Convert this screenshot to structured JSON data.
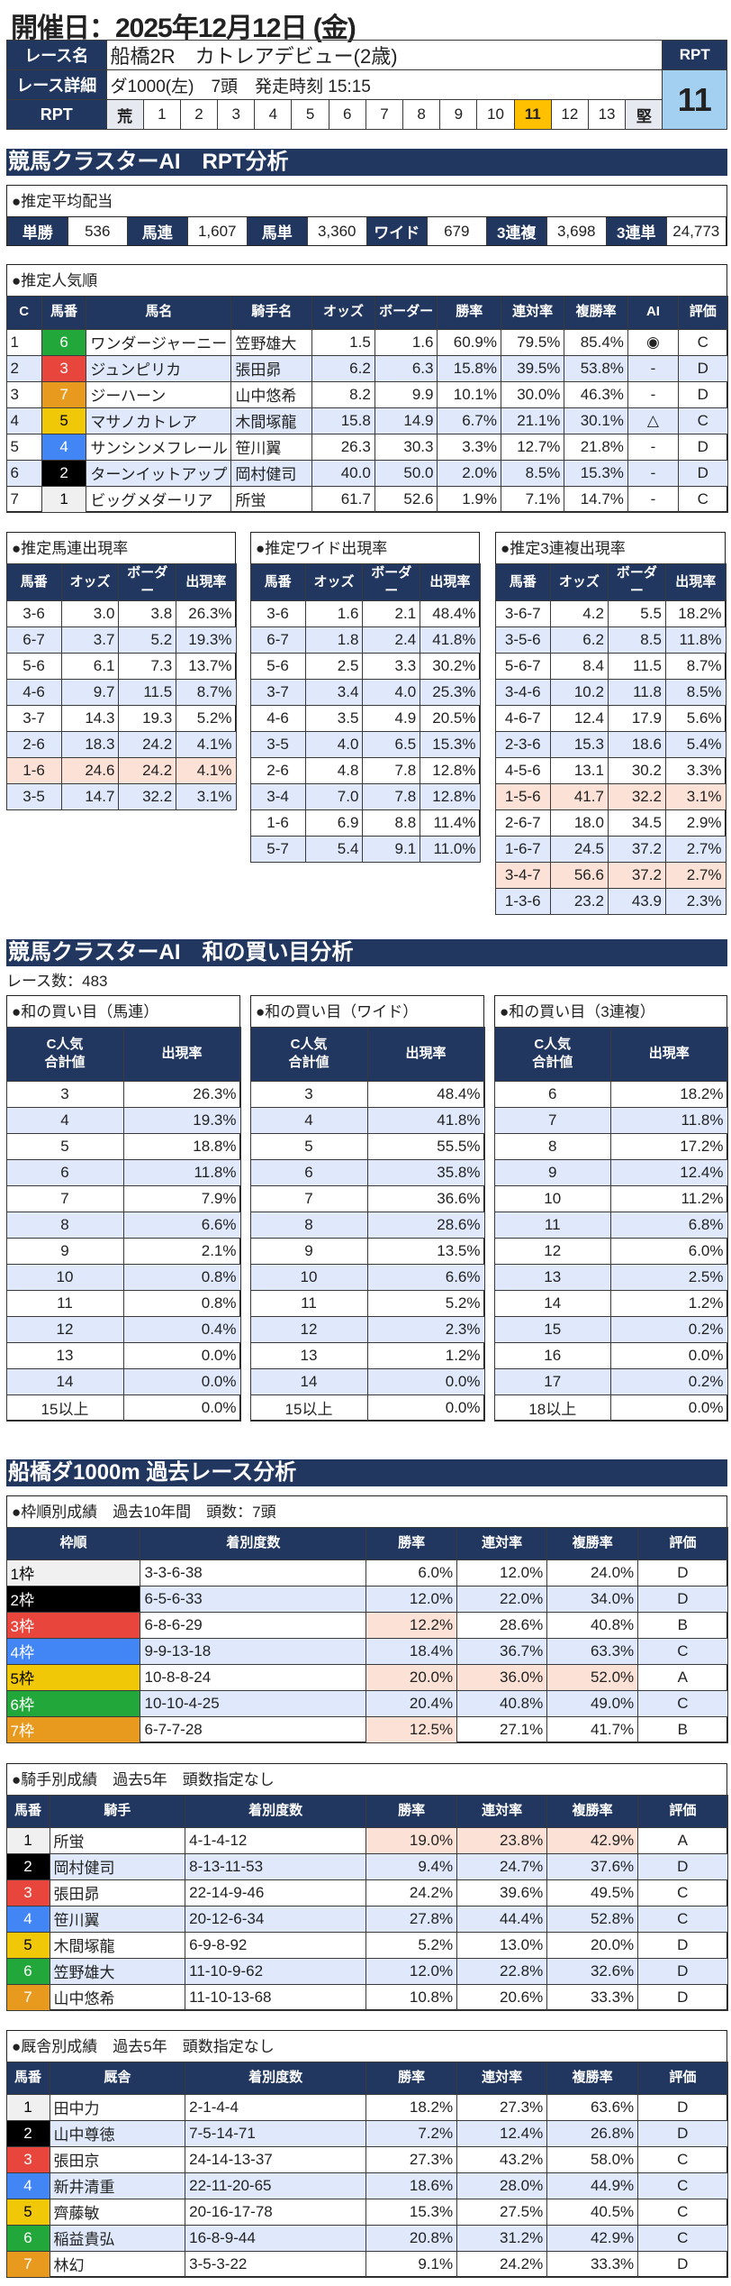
{
  "header": {
    "date_title": "開催日：2025年12月12日 (金)",
    "race_name_label": "レース名",
    "race_name": "船橋2R　カトレアデビュー(2歳)",
    "race_detail_label": "レース詳細",
    "race_detail": "ダ1000(左)　7頭　発走時刻 15:15",
    "rpt_label": "RPT",
    "rpt_scale": [
      "荒",
      "1",
      "2",
      "3",
      "4",
      "5",
      "6",
      "7",
      "8",
      "9",
      "10",
      "11",
      "12",
      "13",
      "堅"
    ],
    "rpt_selected": "11",
    "rpt_box_label": "RPT",
    "rpt_value": "11"
  },
  "colors": {
    "navy": "#21375f",
    "row_alt": "#dfe9fb",
    "highlight": "#fbe1d6",
    "rpt_selected": "#ffc000",
    "rpt_box": "#a3cff0",
    "frame": {
      "1": "#f0f0f0",
      "2": "#000000",
      "3": "#e8453c",
      "4": "#4285f4",
      "5": "#f0c808",
      "6": "#22a83a",
      "7": "#e89a1e"
    }
  },
  "sec1_title": "競馬クラスターAI　RPT分析",
  "payout": {
    "title": "●推定平均配当",
    "items": [
      {
        "label": "単勝",
        "value": "536"
      },
      {
        "label": "馬連",
        "value": "1,607"
      },
      {
        "label": "馬単",
        "value": "3,360"
      },
      {
        "label": "ワイド",
        "value": "679"
      },
      {
        "label": "3連複",
        "value": "3,698"
      },
      {
        "label": "3連単",
        "value": "24,773"
      }
    ]
  },
  "popularity": {
    "title": "●推定人気順",
    "headers": [
      "C",
      "馬番",
      "馬名",
      "騎手名",
      "オッズ",
      "ボーダー",
      "勝率",
      "連対率",
      "複勝率",
      "AI",
      "評価"
    ],
    "rows": [
      [
        "1",
        "6",
        "ワンダージャーニー",
        "笠野雄大",
        "1.5",
        "1.6",
        "60.9%",
        "79.5%",
        "85.4%",
        "◉",
        "C"
      ],
      [
        "2",
        "3",
        "ジュンピリカ",
        "張田昴",
        "6.2",
        "6.3",
        "15.8%",
        "39.5%",
        "53.8%",
        "-",
        "D"
      ],
      [
        "3",
        "7",
        "ジーハーン",
        "山中悠希",
        "8.2",
        "9.9",
        "10.1%",
        "30.0%",
        "46.3%",
        "-",
        "D"
      ],
      [
        "4",
        "5",
        "マサノカトレア",
        "木間塚龍",
        "15.8",
        "14.9",
        "6.7%",
        "21.1%",
        "30.1%",
        "△",
        "C"
      ],
      [
        "5",
        "4",
        "サンシンメフレール",
        "笹川翼",
        "26.3",
        "30.3",
        "3.3%",
        "12.7%",
        "21.8%",
        "-",
        "D"
      ],
      [
        "6",
        "2",
        "ターンイットアップ",
        "岡村健司",
        "40.0",
        "50.0",
        "2.0%",
        "8.5%",
        "15.3%",
        "-",
        "D"
      ],
      [
        "7",
        "1",
        "ビッグメダーリア",
        "所蛍",
        "61.7",
        "52.6",
        "1.9%",
        "7.1%",
        "14.7%",
        "-",
        "C"
      ]
    ]
  },
  "umaren": {
    "title": "●推定馬連出現率",
    "headers": [
      "馬番",
      "オッズ",
      "ボーダー",
      "出現率"
    ],
    "highlight_rows": [
      6
    ],
    "rows": [
      [
        "3-6",
        "3.0",
        "3.8",
        "26.3%"
      ],
      [
        "6-7",
        "3.7",
        "5.2",
        "19.3%"
      ],
      [
        "5-6",
        "6.1",
        "7.3",
        "13.7%"
      ],
      [
        "4-6",
        "9.7",
        "11.5",
        "8.7%"
      ],
      [
        "3-7",
        "14.3",
        "19.3",
        "5.2%"
      ],
      [
        "2-6",
        "18.3",
        "24.2",
        "4.1%"
      ],
      [
        "1-6",
        "24.6",
        "24.2",
        "4.1%"
      ],
      [
        "3-5",
        "14.7",
        "32.2",
        "3.1%"
      ]
    ]
  },
  "wide": {
    "title": "●推定ワイド出現率",
    "headers": [
      "馬番",
      "オッズ",
      "ボーダー",
      "出現率"
    ],
    "highlight_rows": [],
    "rows": [
      [
        "3-6",
        "1.6",
        "2.1",
        "48.4%"
      ],
      [
        "6-7",
        "1.8",
        "2.4",
        "41.8%"
      ],
      [
        "5-6",
        "2.5",
        "3.3",
        "30.2%"
      ],
      [
        "3-7",
        "3.4",
        "4.0",
        "25.3%"
      ],
      [
        "4-6",
        "3.5",
        "4.9",
        "20.5%"
      ],
      [
        "3-5",
        "4.0",
        "6.5",
        "15.3%"
      ],
      [
        "2-6",
        "4.8",
        "7.8",
        "12.8%"
      ],
      [
        "3-4",
        "7.0",
        "7.8",
        "12.8%"
      ],
      [
        "1-6",
        "6.9",
        "8.8",
        "11.4%"
      ],
      [
        "5-7",
        "5.4",
        "9.1",
        "11.0%"
      ]
    ]
  },
  "sanrenpuku": {
    "title": "●推定3連複出現率",
    "headers": [
      "馬番",
      "オッズ",
      "ボーダー",
      "出現率"
    ],
    "highlight_rows": [
      7,
      10
    ],
    "rows": [
      [
        "3-6-7",
        "4.2",
        "5.5",
        "18.2%"
      ],
      [
        "3-5-6",
        "6.2",
        "8.5",
        "11.8%"
      ],
      [
        "5-6-7",
        "8.4",
        "11.5",
        "8.7%"
      ],
      [
        "3-4-6",
        "10.2",
        "11.8",
        "8.5%"
      ],
      [
        "4-6-7",
        "12.4",
        "17.9",
        "5.6%"
      ],
      [
        "2-3-6",
        "15.3",
        "18.6",
        "5.4%"
      ],
      [
        "4-5-6",
        "13.1",
        "30.2",
        "3.3%"
      ],
      [
        "1-5-6",
        "41.7",
        "32.2",
        "3.1%"
      ],
      [
        "2-6-7",
        "18.0",
        "34.5",
        "2.9%"
      ],
      [
        "1-6-7",
        "24.5",
        "37.2",
        "2.7%"
      ],
      [
        "3-4-7",
        "56.6",
        "37.2",
        "2.7%"
      ],
      [
        "1-3-6",
        "23.2",
        "43.9",
        "2.3%"
      ]
    ]
  },
  "sec2_title": "競馬クラスターAI　和の買い目分析",
  "race_count": "レース数：483",
  "sum_umaren": {
    "title": "●和の買い目（馬連）",
    "headers": [
      "C人気\n合計値",
      "出現率"
    ],
    "rows": [
      [
        "3",
        "26.3%"
      ],
      [
        "4",
        "19.3%"
      ],
      [
        "5",
        "18.8%"
      ],
      [
        "6",
        "11.8%"
      ],
      [
        "7",
        "7.9%"
      ],
      [
        "8",
        "6.6%"
      ],
      [
        "9",
        "2.1%"
      ],
      [
        "10",
        "0.8%"
      ],
      [
        "11",
        "0.8%"
      ],
      [
        "12",
        "0.4%"
      ],
      [
        "13",
        "0.0%"
      ],
      [
        "14",
        "0.0%"
      ],
      [
        "15以上",
        "0.0%"
      ]
    ]
  },
  "sum_wide": {
    "title": "●和の買い目（ワイド）",
    "headers": [
      "C人気\n合計値",
      "出現率"
    ],
    "rows": [
      [
        "3",
        "48.4%"
      ],
      [
        "4",
        "41.8%"
      ],
      [
        "5",
        "55.5%"
      ],
      [
        "6",
        "35.8%"
      ],
      [
        "7",
        "36.6%"
      ],
      [
        "8",
        "28.6%"
      ],
      [
        "9",
        "13.5%"
      ],
      [
        "10",
        "6.6%"
      ],
      [
        "11",
        "5.2%"
      ],
      [
        "12",
        "2.3%"
      ],
      [
        "13",
        "1.2%"
      ],
      [
        "14",
        "0.0%"
      ],
      [
        "15以上",
        "0.0%"
      ]
    ]
  },
  "sum_sanrenpuku": {
    "title": "●和の買い目（3連複）",
    "headers": [
      "C人気\n合計値",
      "出現率"
    ],
    "rows": [
      [
        "6",
        "18.2%"
      ],
      [
        "7",
        "11.8%"
      ],
      [
        "8",
        "17.2%"
      ],
      [
        "9",
        "12.4%"
      ],
      [
        "10",
        "11.2%"
      ],
      [
        "11",
        "6.8%"
      ],
      [
        "12",
        "6.0%"
      ],
      [
        "13",
        "2.5%"
      ],
      [
        "14",
        "1.2%"
      ],
      [
        "15",
        "0.2%"
      ],
      [
        "16",
        "0.0%"
      ],
      [
        "17",
        "0.2%"
      ],
      [
        "18以上",
        "0.0%"
      ]
    ]
  },
  "sec3_title": "船橋ダ1000m 過去レース分析",
  "frame": {
    "title": "●枠順別成績　過去10年間　頭数：7頭",
    "headers": [
      "枠順",
      "着別度数",
      "勝率",
      "連対率",
      "複勝率",
      "評価"
    ],
    "highlights": [
      [
        2,
        2
      ],
      [
        4,
        2
      ],
      [
        4,
        3
      ],
      [
        4,
        4
      ],
      [
        6,
        2
      ]
    ],
    "rows": [
      [
        "1枠",
        "3-3-6-38",
        "6.0%",
        "12.0%",
        "24.0%",
        "D"
      ],
      [
        "2枠",
        "6-5-6-33",
        "12.0%",
        "22.0%",
        "34.0%",
        "D"
      ],
      [
        "3枠",
        "6-8-6-29",
        "12.2%",
        "28.6%",
        "40.8%",
        "B"
      ],
      [
        "4枠",
        "9-9-13-18",
        "18.4%",
        "36.7%",
        "63.3%",
        "C"
      ],
      [
        "5枠",
        "10-8-8-24",
        "20.0%",
        "36.0%",
        "52.0%",
        "A"
      ],
      [
        "6枠",
        "10-10-4-25",
        "20.4%",
        "40.8%",
        "49.0%",
        "C"
      ],
      [
        "7枠",
        "6-7-7-28",
        "12.5%",
        "27.1%",
        "41.7%",
        "B"
      ]
    ]
  },
  "jockey": {
    "title": "●騎手別成績　過去5年　頭数指定なし",
    "headers": [
      "馬番",
      "騎手",
      "着別度数",
      "勝率",
      "連対率",
      "複勝率",
      "評価"
    ],
    "highlights": [
      [
        0,
        3
      ],
      [
        0,
        4
      ],
      [
        0,
        5
      ]
    ],
    "rows": [
      [
        "1",
        "所蛍",
        "4-1-4-12",
        "19.0%",
        "23.8%",
        "42.9%",
        "A"
      ],
      [
        "2",
        "岡村健司",
        "8-13-11-53",
        "9.4%",
        "24.7%",
        "37.6%",
        "D"
      ],
      [
        "3",
        "張田昴",
        "22-14-9-46",
        "24.2%",
        "39.6%",
        "49.5%",
        "C"
      ],
      [
        "4",
        "笹川翼",
        "20-12-6-34",
        "27.8%",
        "44.4%",
        "52.8%",
        "C"
      ],
      [
        "5",
        "木間塚龍",
        "6-9-8-92",
        "5.2%",
        "13.0%",
        "20.0%",
        "D"
      ],
      [
        "6",
        "笠野雄大",
        "11-10-9-62",
        "12.0%",
        "22.8%",
        "32.6%",
        "D"
      ],
      [
        "7",
        "山中悠希",
        "11-10-13-68",
        "10.8%",
        "20.6%",
        "33.3%",
        "D"
      ]
    ]
  },
  "stable": {
    "title": "●厩舎別成績　過去5年　頭数指定なし",
    "headers": [
      "馬番",
      "厩舎",
      "着別度数",
      "勝率",
      "連対率",
      "複勝率",
      "評価"
    ],
    "highlights": [],
    "rows": [
      [
        "1",
        "田中力",
        "2-1-4-4",
        "18.2%",
        "27.3%",
        "63.6%",
        "D"
      ],
      [
        "2",
        "山中尊徳",
        "7-5-14-71",
        "7.2%",
        "12.4%",
        "26.8%",
        "D"
      ],
      [
        "3",
        "張田京",
        "24-14-13-37",
        "27.3%",
        "43.2%",
        "58.0%",
        "C"
      ],
      [
        "4",
        "新井清重",
        "22-11-20-65",
        "18.6%",
        "28.0%",
        "44.9%",
        "C"
      ],
      [
        "5",
        "齊藤敏",
        "20-16-17-78",
        "15.3%",
        "27.5%",
        "40.5%",
        "C"
      ],
      [
        "6",
        "稲益貴弘",
        "16-8-9-44",
        "20.8%",
        "31.2%",
        "42.9%",
        "C"
      ],
      [
        "7",
        "林幻",
        "3-5-3-22",
        "9.1%",
        "24.2%",
        "33.3%",
        "D"
      ]
    ]
  }
}
